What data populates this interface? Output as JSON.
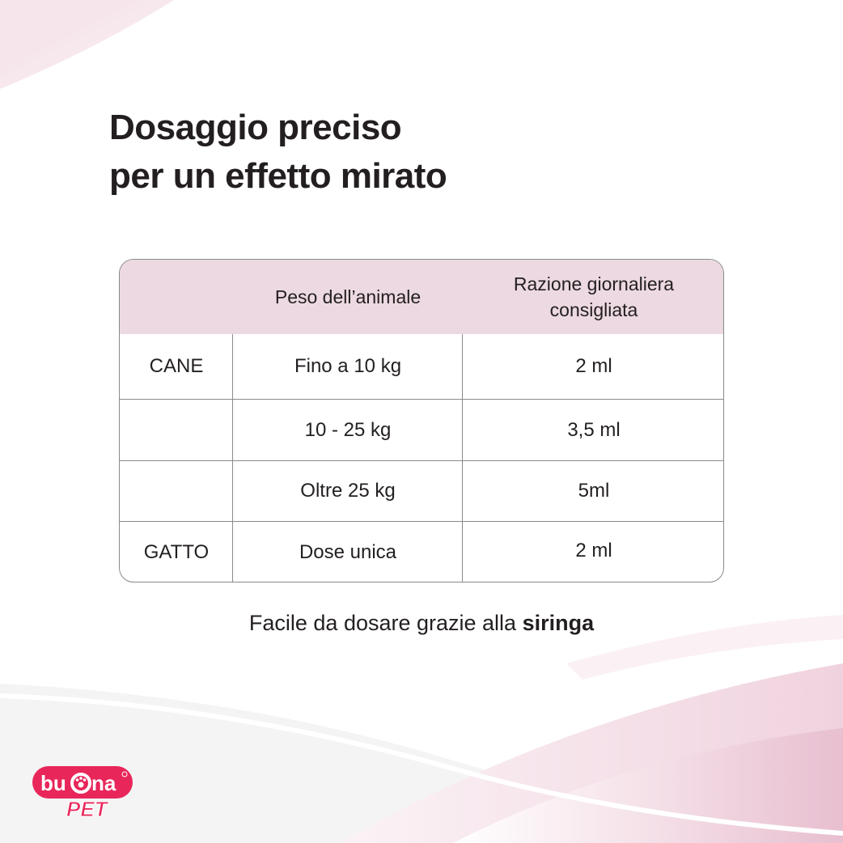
{
  "title": {
    "line1": "Dosaggio preciso",
    "line2": "per un effetto mirato"
  },
  "table": {
    "headers": [
      "",
      "Peso dell’animale",
      "Razione giornaliera consigliata"
    ],
    "header_line1": "Razione giornaliera",
    "header_line2": "consigliata",
    "rows": [
      {
        "animal": "CANE",
        "weight": "Fino a 10 kg",
        "dose": "2 ml"
      },
      {
        "animal": "",
        "weight": "10 - 25 kg",
        "dose": "3,5 ml"
      },
      {
        "animal": "",
        "weight": "Oltre 25 kg",
        "dose": "5ml"
      },
      {
        "animal": "GATTO",
        "weight": "Dose unica",
        "dose": "2 ml"
      }
    ]
  },
  "note": {
    "text": "Facile da dosare grazie alla ",
    "bold": "siringa"
  },
  "logo": {
    "line1": "bu°na",
    "line2": "PET",
    "brand_color": "#e8265a"
  },
  "colors": {
    "header_bg": "#ecd9e1",
    "accent_pink": "#e9c3d2",
    "text": "#231f20"
  }
}
